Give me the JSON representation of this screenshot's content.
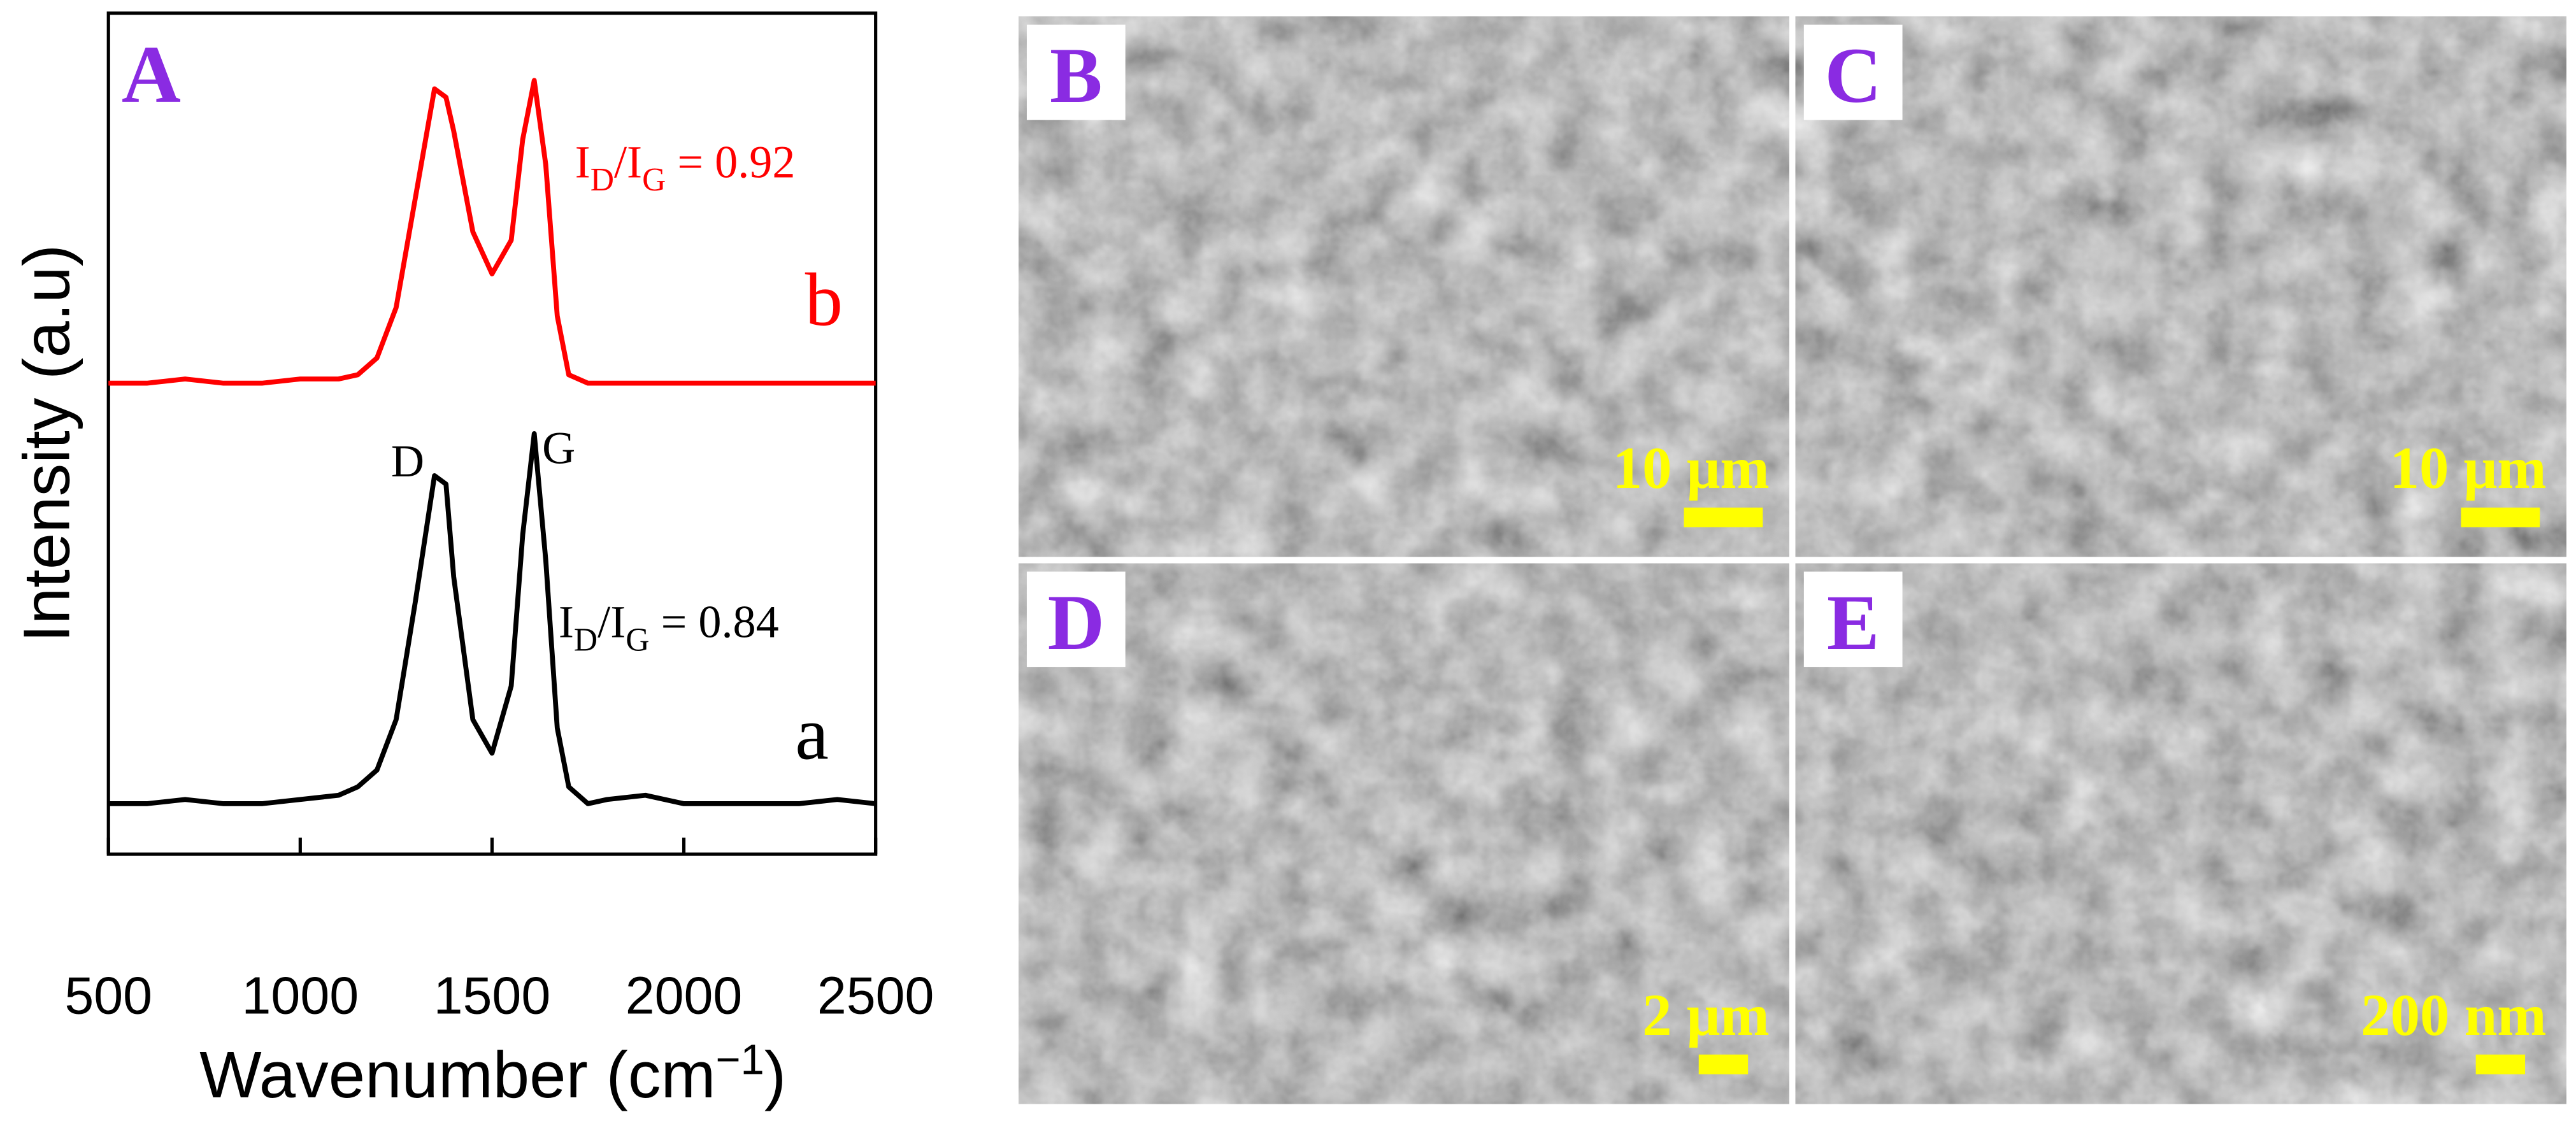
{
  "chart_data": {
    "type": "line",
    "panel_label": "A",
    "x_label": {
      "text": "Wavenumber (cm",
      "sup": "−1",
      "end": ")"
    },
    "y_label": "Intensity (a.u)",
    "x": [
      500,
      600,
      700,
      800,
      900,
      1000,
      1100,
      1150,
      1200,
      1250,
      1300,
      1350,
      1380,
      1400,
      1450,
      1500,
      1550,
      1580,
      1610,
      1640,
      1670,
      1700,
      1750,
      1800,
      1900,
      2000,
      2100,
      2200,
      2300,
      2400,
      2500
    ],
    "series": [
      {
        "name": "a",
        "color": "#000000",
        "values": [
          6,
          6,
          6.5,
          6,
          6,
          6.5,
          7,
          8,
          10,
          16,
          30,
          45,
          44,
          33,
          16,
          12,
          20,
          38,
          50,
          35,
          15,
          8,
          6,
          6.5,
          7,
          6,
          6,
          6,
          6,
          6.5,
          6
        ]
      },
      {
        "name": "b",
        "color": "#ff0000",
        "values": [
          56,
          56,
          56.5,
          56,
          56,
          56.5,
          56.5,
          57,
          59,
          65,
          78,
          91,
          90,
          86,
          74,
          69,
          73,
          85,
          92,
          82,
          64,
          57,
          56,
          56,
          56,
          56,
          56,
          56,
          56,
          56,
          56
        ]
      }
    ],
    "xlim": [
      500,
      2500
    ],
    "xticks": [
      500,
      1000,
      1500,
      2000,
      2500
    ],
    "ylim": [
      0,
      100
    ],
    "annotations": {
      "D": "D",
      "G": "G"
    },
    "ratios": [
      {
        "text": "I",
        "sub": "D",
        "text2": "/I",
        "sub2": "G",
        "text3": " = 0.92"
      },
      {
        "text": "I",
        "sub": "D",
        "text2": "/I",
        "sub2": "G",
        "text3": " = 0.84"
      }
    ]
  },
  "images": [
    {
      "label": "B",
      "scale_bar": "10 μm"
    },
    {
      "label": "C",
      "scale_bar": "10 μm"
    },
    {
      "label": "D",
      "scale_bar": "2 μm"
    },
    {
      "label": "E",
      "scale_bar": "200 nm"
    }
  ]
}
